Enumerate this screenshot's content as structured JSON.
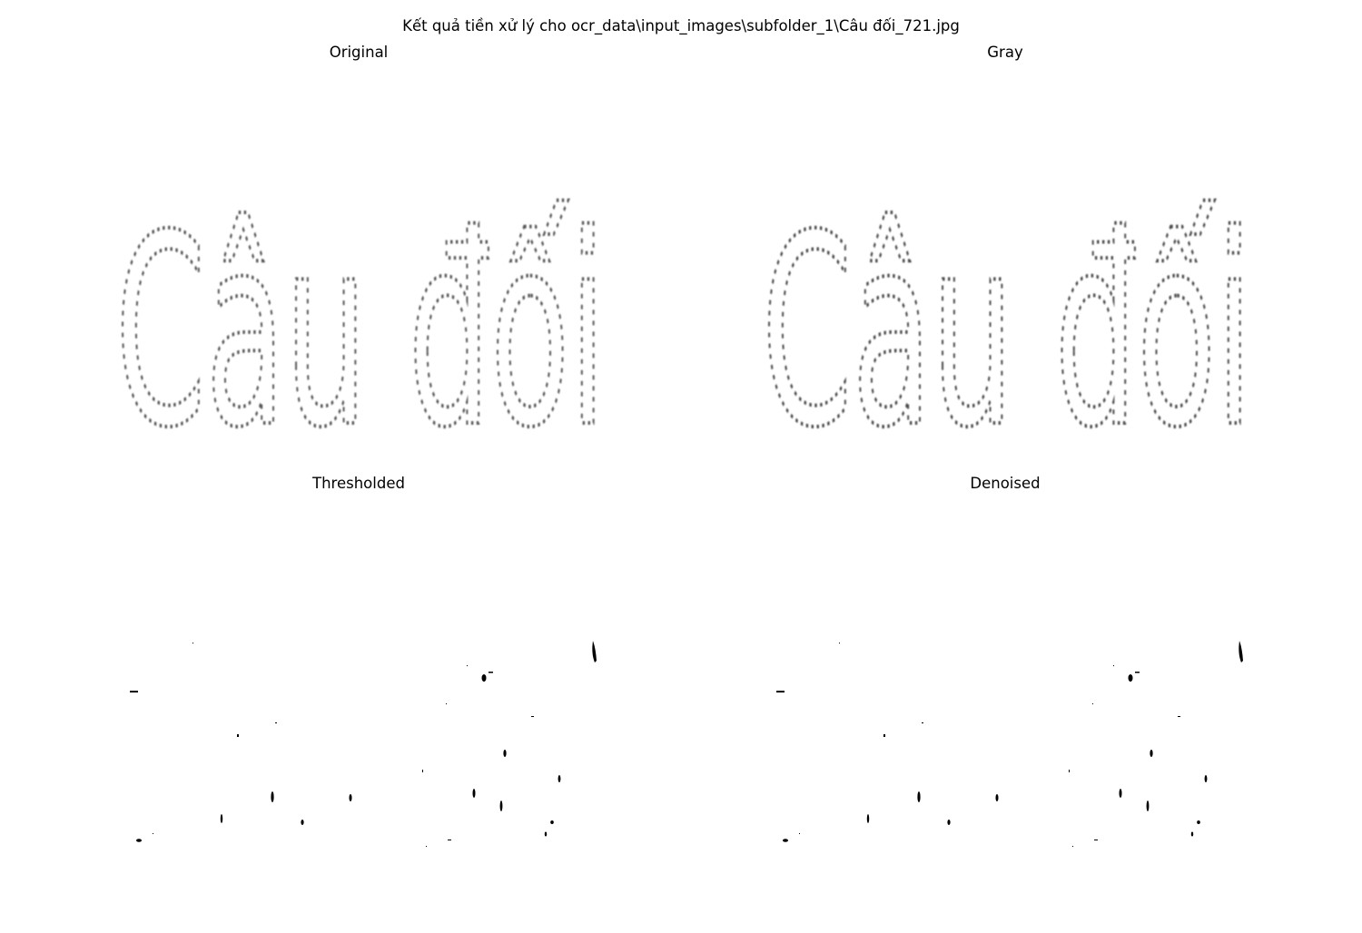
{
  "figure": {
    "suptitle": "Kết quả tiền xử lý cho ocr_data\\input_images\\subfolder_1\\Câu đối_721.jpg"
  },
  "panels": [
    {
      "title": "Original",
      "image_text": "Câu đối"
    },
    {
      "title": "Gray",
      "image_text": "Câu đối"
    },
    {
      "title": "Thresholded"
    },
    {
      "title": "Denoised"
    }
  ],
  "colors": {
    "background": "#ffffff",
    "ink": "#000000"
  }
}
